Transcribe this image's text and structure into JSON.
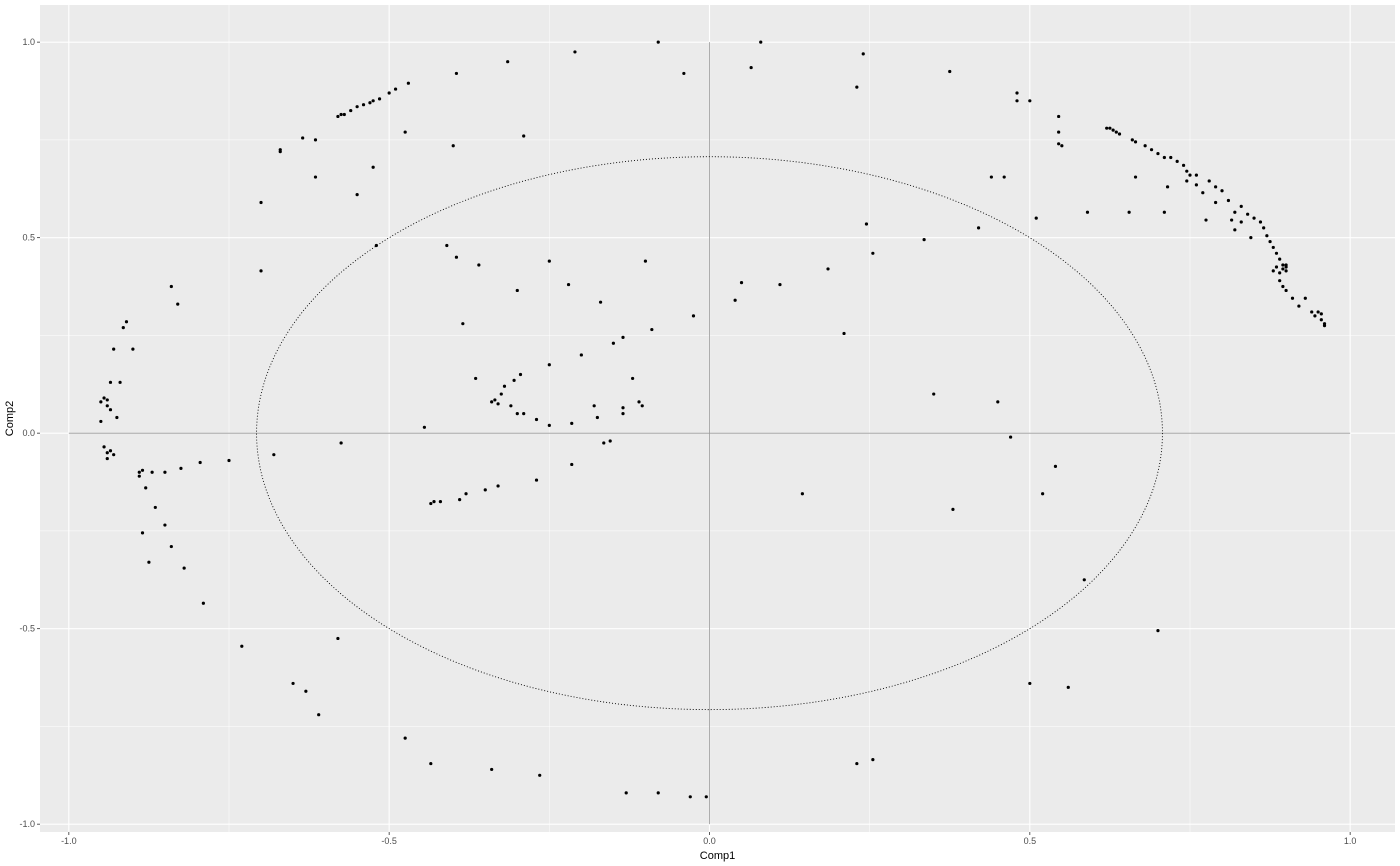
{
  "chart_data": {
    "type": "scatter",
    "title": "",
    "xlabel": "Comp1",
    "ylabel": "Comp2",
    "xlim": [
      -1.045,
      1.07
    ],
    "ylim": [
      -1.02,
      1.095
    ],
    "x_ticks": [
      -1.0,
      -0.5,
      0.0,
      0.5,
      1.0
    ],
    "y_ticks": [
      -1.0,
      -0.5,
      0.0,
      0.5,
      1.0
    ],
    "x_tick_labels": [
      "-1.0",
      "-0.5",
      "0.0",
      "0.5",
      "1.0"
    ],
    "y_tick_labels": [
      "-1.0",
      "-0.5",
      "0.0",
      "0.5",
      "1.0"
    ],
    "grid": true,
    "reference_lines": {
      "h": 0,
      "v": 0,
      "x_range": [
        -1,
        1
      ],
      "y_range": [
        -1,
        1
      ]
    },
    "circle": {
      "center": [
        0,
        0
      ],
      "radius": 0.707,
      "style": "dotted"
    },
    "colors": {
      "panel_bg": "#ebebeb",
      "grid": "#ffffff",
      "point": "#000000",
      "ref_line": "#999999",
      "circle": "#000000"
    },
    "points": [
      [
        -0.95,
        0.03
      ],
      [
        -0.95,
        0.08
      ],
      [
        -0.945,
        0.09
      ],
      [
        -0.94,
        0.085
      ],
      [
        -0.94,
        0.07
      ],
      [
        -0.935,
        0.06
      ],
      [
        -0.945,
        -0.035
      ],
      [
        -0.94,
        -0.05
      ],
      [
        -0.935,
        -0.045
      ],
      [
        -0.93,
        -0.055
      ],
      [
        -0.94,
        -0.065
      ],
      [
        -0.935,
        0.13
      ],
      [
        -0.93,
        0.215
      ],
      [
        -0.925,
        0.04
      ],
      [
        -0.92,
        0.13
      ],
      [
        -0.915,
        0.27
      ],
      [
        -0.91,
        0.285
      ],
      [
        -0.9,
        0.215
      ],
      [
        -0.89,
        -0.1
      ],
      [
        -0.885,
        -0.095
      ],
      [
        -0.89,
        -0.11
      ],
      [
        -0.885,
        -0.255
      ],
      [
        -0.88,
        -0.14
      ],
      [
        -0.875,
        -0.33
      ],
      [
        -0.87,
        -0.1
      ],
      [
        -0.865,
        -0.19
      ],
      [
        -0.85,
        -0.235
      ],
      [
        -0.85,
        -0.1
      ],
      [
        -0.84,
        -0.29
      ],
      [
        -0.84,
        0.375
      ],
      [
        -0.83,
        0.33
      ],
      [
        -0.825,
        -0.09
      ],
      [
        -0.82,
        -0.345
      ],
      [
        -0.795,
        -0.075
      ],
      [
        -0.79,
        -0.435
      ],
      [
        -0.75,
        -0.07
      ],
      [
        -0.73,
        -0.545
      ],
      [
        -0.7,
        0.415
      ],
      [
        -0.7,
        0.59
      ],
      [
        -0.68,
        -0.055
      ],
      [
        -0.67,
        0.725
      ],
      [
        -0.67,
        0.72
      ],
      [
        -0.65,
        -0.64
      ],
      [
        -0.635,
        0.755
      ],
      [
        -0.63,
        -0.66
      ],
      [
        -0.615,
        0.75
      ],
      [
        -0.615,
        0.655
      ],
      [
        -0.61,
        -0.72
      ],
      [
        -0.58,
        0.81
      ],
      [
        -0.575,
        0.815
      ],
      [
        -0.57,
        0.815
      ],
      [
        -0.56,
        0.825
      ],
      [
        -0.55,
        0.835
      ],
      [
        -0.54,
        0.84
      ],
      [
        -0.53,
        0.845
      ],
      [
        -0.525,
        0.85
      ],
      [
        -0.515,
        0.855
      ],
      [
        -0.5,
        0.87
      ],
      [
        -0.49,
        0.88
      ],
      [
        -0.47,
        0.895
      ],
      [
        -0.58,
        -0.525
      ],
      [
        -0.575,
        -0.025
      ],
      [
        -0.55,
        0.61
      ],
      [
        -0.525,
        0.68
      ],
      [
        -0.52,
        0.48
      ],
      [
        -0.475,
        0.77
      ],
      [
        -0.475,
        -0.78
      ],
      [
        -0.445,
        0.015
      ],
      [
        -0.435,
        -0.845
      ],
      [
        -0.435,
        -0.18
      ],
      [
        -0.43,
        -0.175
      ],
      [
        -0.42,
        -0.175
      ],
      [
        -0.41,
        0.48
      ],
      [
        -0.4,
        0.735
      ],
      [
        -0.395,
        0.92
      ],
      [
        -0.395,
        0.45
      ],
      [
        -0.39,
        -0.17
      ],
      [
        -0.385,
        0.28
      ],
      [
        -0.38,
        -0.155
      ],
      [
        -0.365,
        0.14
      ],
      [
        -0.36,
        0.43
      ],
      [
        -0.35,
        -0.145
      ],
      [
        -0.34,
        -0.86
      ],
      [
        -0.34,
        0.08
      ],
      [
        -0.335,
        0.085
      ],
      [
        -0.33,
        0.075
      ],
      [
        -0.325,
        0.1
      ],
      [
        -0.32,
        0.12
      ],
      [
        -0.315,
        0.95
      ],
      [
        -0.31,
        0.07
      ],
      [
        -0.305,
        0.135
      ],
      [
        -0.3,
        0.05
      ],
      [
        -0.295,
        0.15
      ],
      [
        -0.29,
        0.05
      ],
      [
        -0.29,
        0.76
      ],
      [
        -0.3,
        0.365
      ],
      [
        -0.33,
        -0.135
      ],
      [
        -0.27,
        0.035
      ],
      [
        -0.27,
        -0.12
      ],
      [
        -0.265,
        -0.875
      ],
      [
        -0.25,
        0.175
      ],
      [
        -0.25,
        0.02
      ],
      [
        -0.25,
        0.44
      ],
      [
        -0.22,
        0.38
      ],
      [
        -0.215,
        0.025
      ],
      [
        -0.215,
        -0.08
      ],
      [
        -0.21,
        0.975
      ],
      [
        -0.2,
        0.2
      ],
      [
        -0.18,
        0.07
      ],
      [
        -0.175,
        0.04
      ],
      [
        -0.17,
        0.335
      ],
      [
        -0.165,
        -0.025
      ],
      [
        -0.155,
        -0.02
      ],
      [
        -0.15,
        0.23
      ],
      [
        -0.135,
        0.245
      ],
      [
        -0.135,
        0.05
      ],
      [
        -0.135,
        0.065
      ],
      [
        -0.13,
        -0.92
      ],
      [
        -0.12,
        0.14
      ],
      [
        -0.11,
        0.08
      ],
      [
        -0.105,
        0.07
      ],
      [
        -0.1,
        0.44
      ],
      [
        -0.09,
        0.265
      ],
      [
        -0.08,
        -0.92
      ],
      [
        -0.08,
        1.0
      ],
      [
        -0.04,
        0.92
      ],
      [
        -0.03,
        -0.93
      ],
      [
        -0.025,
        0.3
      ],
      [
        -0.005,
        -0.93
      ],
      [
        0.04,
        0.34
      ],
      [
        0.05,
        0.385
      ],
      [
        0.065,
        0.935
      ],
      [
        0.08,
        1.0
      ],
      [
        0.11,
        0.38
      ],
      [
        0.145,
        -0.155
      ],
      [
        0.185,
        0.42
      ],
      [
        0.21,
        0.255
      ],
      [
        0.23,
        0.885
      ],
      [
        0.23,
        -0.845
      ],
      [
        0.24,
        0.97
      ],
      [
        0.245,
        0.535
      ],
      [
        0.255,
        0.46
      ],
      [
        0.255,
        -0.835
      ],
      [
        0.335,
        0.495
      ],
      [
        0.35,
        0.1
      ],
      [
        0.375,
        0.925
      ],
      [
        0.38,
        -0.195
      ],
      [
        0.42,
        0.525
      ],
      [
        0.44,
        0.655
      ],
      [
        0.45,
        0.08
      ],
      [
        0.46,
        0.655
      ],
      [
        0.47,
        -0.01
      ],
      [
        0.48,
        0.85
      ],
      [
        0.48,
        0.87
      ],
      [
        0.5,
        0.85
      ],
      [
        0.5,
        -0.64
      ],
      [
        0.51,
        0.55
      ],
      [
        0.52,
        -0.155
      ],
      [
        0.54,
        -0.085
      ],
      [
        0.545,
        0.81
      ],
      [
        0.545,
        0.77
      ],
      [
        0.545,
        0.74
      ],
      [
        0.55,
        0.735
      ],
      [
        0.56,
        -0.65
      ],
      [
        0.585,
        -0.375
      ],
      [
        0.59,
        0.565
      ],
      [
        0.62,
        0.78
      ],
      [
        0.625,
        0.78
      ],
      [
        0.63,
        0.775
      ],
      [
        0.635,
        0.77
      ],
      [
        0.64,
        0.765
      ],
      [
        0.655,
        0.565
      ],
      [
        0.66,
        0.75
      ],
      [
        0.665,
        0.745
      ],
      [
        0.665,
        0.655
      ],
      [
        0.68,
        0.735
      ],
      [
        0.69,
        0.725
      ],
      [
        0.7,
        0.715
      ],
      [
        0.7,
        -0.505
      ],
      [
        0.71,
        0.705
      ],
      [
        0.71,
        0.565
      ],
      [
        0.715,
        0.63
      ],
      [
        0.72,
        0.705
      ],
      [
        0.73,
        0.695
      ],
      [
        0.74,
        0.685
      ],
      [
        0.745,
        0.67
      ],
      [
        0.75,
        0.66
      ],
      [
        0.745,
        0.645
      ],
      [
        0.76,
        0.635
      ],
      [
        0.76,
        0.66
      ],
      [
        0.77,
        0.615
      ],
      [
        0.775,
        0.545
      ],
      [
        0.78,
        0.645
      ],
      [
        0.79,
        0.63
      ],
      [
        0.79,
        0.59
      ],
      [
        0.8,
        0.62
      ],
      [
        0.81,
        0.595
      ],
      [
        0.815,
        0.545
      ],
      [
        0.82,
        0.565
      ],
      [
        0.82,
        0.52
      ],
      [
        0.83,
        0.58
      ],
      [
        0.83,
        0.54
      ],
      [
        0.84,
        0.56
      ],
      [
        0.845,
        0.5
      ],
      [
        0.85,
        0.55
      ],
      [
        0.86,
        0.54
      ],
      [
        0.865,
        0.525
      ],
      [
        0.87,
        0.505
      ],
      [
        0.875,
        0.49
      ],
      [
        0.88,
        0.475
      ],
      [
        0.885,
        0.46
      ],
      [
        0.89,
        0.445
      ],
      [
        0.895,
        0.43
      ],
      [
        0.9,
        0.425
      ],
      [
        0.9,
        0.415
      ],
      [
        0.895,
        0.42
      ],
      [
        0.89,
        0.41
      ],
      [
        0.885,
        0.425
      ],
      [
        0.88,
        0.415
      ],
      [
        0.89,
        0.39
      ],
      [
        0.895,
        0.375
      ],
      [
        0.9,
        0.365
      ],
      [
        0.91,
        0.345
      ],
      [
        0.92,
        0.325
      ],
      [
        0.93,
        0.345
      ],
      [
        0.94,
        0.31
      ],
      [
        0.945,
        0.3
      ],
      [
        0.95,
        0.31
      ],
      [
        0.955,
        0.305
      ],
      [
        0.955,
        0.29
      ],
      [
        0.96,
        0.28
      ],
      [
        0.96,
        0.275
      ],
      [
        0.9,
        0.43
      ]
    ]
  }
}
